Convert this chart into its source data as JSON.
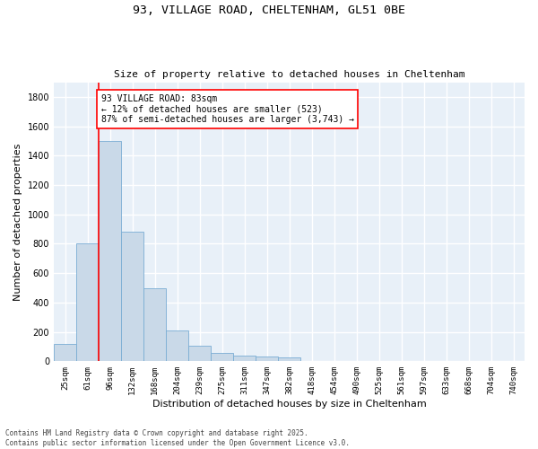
{
  "title_line1": "93, VILLAGE ROAD, CHELTENHAM, GL51 0BE",
  "title_line2": "Size of property relative to detached houses in Cheltenham",
  "xlabel": "Distribution of detached houses by size in Cheltenham",
  "ylabel": "Number of detached properties",
  "categories": [
    "25sqm",
    "61sqm",
    "96sqm",
    "132sqm",
    "168sqm",
    "204sqm",
    "239sqm",
    "275sqm",
    "311sqm",
    "347sqm",
    "382sqm",
    "418sqm",
    "454sqm",
    "490sqm",
    "525sqm",
    "561sqm",
    "597sqm",
    "633sqm",
    "668sqm",
    "704sqm",
    "740sqm"
  ],
  "values": [
    120,
    800,
    1500,
    880,
    500,
    210,
    105,
    60,
    40,
    30,
    25,
    0,
    0,
    0,
    0,
    0,
    0,
    0,
    0,
    0,
    0
  ],
  "bar_color": "#c9d9e8",
  "bar_edge_color": "#7aadd4",
  "vline_x": 1.5,
  "vline_color": "red",
  "annotation_text": "93 VILLAGE ROAD: 83sqm\n← 12% of detached houses are smaller (523)\n87% of semi-detached houses are larger (3,743) →",
  "annotation_box_color": "white",
  "annotation_box_edge": "red",
  "ylim": [
    0,
    1900
  ],
  "yticks": [
    0,
    200,
    400,
    600,
    800,
    1000,
    1200,
    1400,
    1600,
    1800
  ],
  "background_color": "#e8f0f8",
  "grid_color": "white",
  "footer": "Contains HM Land Registry data © Crown copyright and database right 2025.\nContains public sector information licensed under the Open Government Licence v3.0."
}
